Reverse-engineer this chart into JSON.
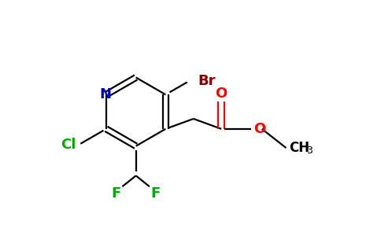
{
  "bg_color": "#ffffff",
  "atom_colors": {
    "N": "#0000cc",
    "O": "#ff0000",
    "Br": "#8b0000",
    "Cl": "#00aa00",
    "F": "#00aa00",
    "C": "#000000"
  },
  "bond_color": "#000000",
  "lw": 1.6
}
